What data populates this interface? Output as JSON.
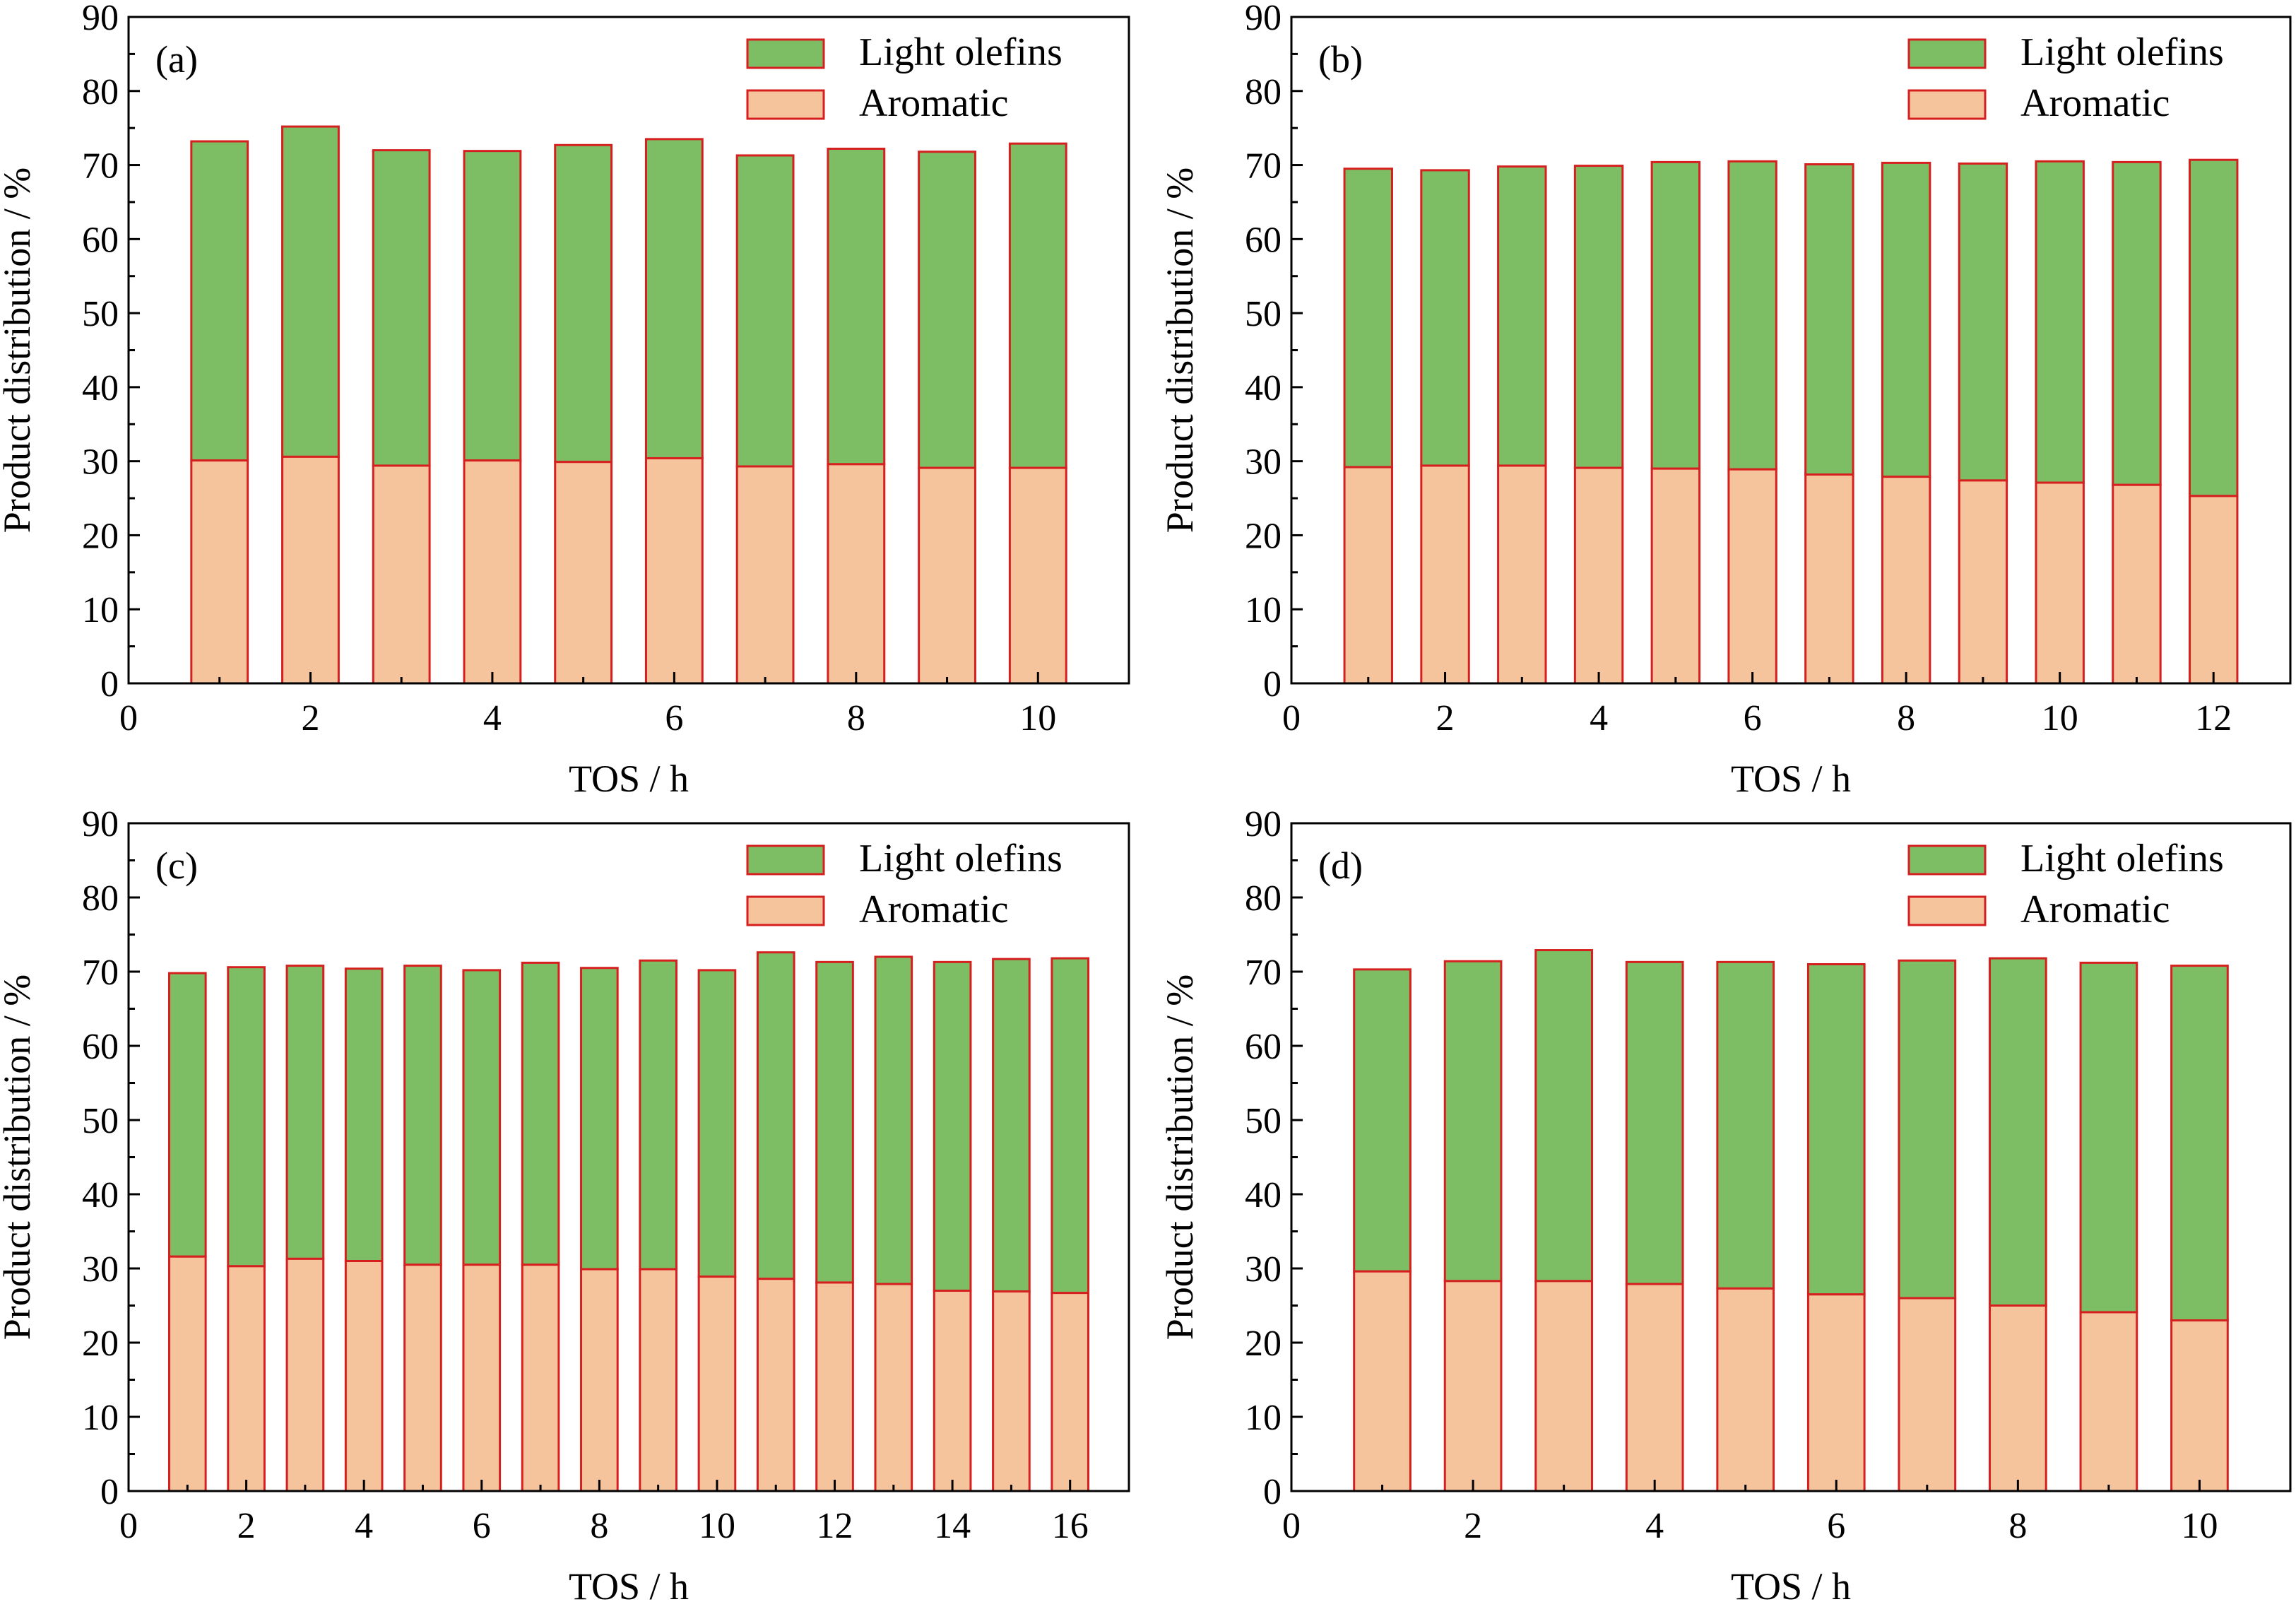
{
  "colors": {
    "light_olefins": "#7dbe64",
    "aromatic": "#f5c49c",
    "bar_edge": "#d62020",
    "axis": "#000000"
  },
  "chart_data": [
    {
      "type": "bar",
      "stacked": true,
      "panel_label": "(a)",
      "xlabel": "TOS / h",
      "ylabel": "Product distribution / %",
      "xlim": [
        0,
        11
      ],
      "ylim": [
        0,
        90
      ],
      "xticks": [
        0,
        2,
        4,
        6,
        8,
        10
      ],
      "yticks": [
        0,
        10,
        20,
        30,
        40,
        50,
        60,
        70,
        80,
        90
      ],
      "legend_position": "top-right",
      "x": [
        1,
        2,
        3,
        4,
        5,
        6,
        7,
        8,
        9,
        10
      ],
      "series": [
        {
          "name": "Aromatic",
          "values": [
            30.1,
            30.6,
            29.4,
            30.1,
            29.9,
            30.4,
            29.3,
            29.6,
            29.1,
            29.1
          ]
        },
        {
          "name": "Light olefins",
          "values": [
            43.1,
            44.6,
            42.6,
            41.8,
            42.8,
            43.1,
            42.0,
            42.6,
            42.7,
            43.8
          ]
        }
      ]
    },
    {
      "type": "bar",
      "stacked": true,
      "panel_label": "(b)",
      "xlabel": "TOS / h",
      "ylabel": "Product distribution / %",
      "xlim": [
        0,
        13
      ],
      "ylim": [
        0,
        90
      ],
      "xticks": [
        0,
        2,
        4,
        6,
        8,
        10,
        12
      ],
      "yticks": [
        0,
        10,
        20,
        30,
        40,
        50,
        60,
        70,
        80,
        90
      ],
      "legend_position": "top-right",
      "x": [
        1,
        2,
        3,
        4,
        5,
        6,
        7,
        8,
        9,
        10,
        11,
        12
      ],
      "series": [
        {
          "name": "Aromatic",
          "values": [
            29.2,
            29.4,
            29.4,
            29.1,
            29.0,
            28.9,
            28.2,
            27.9,
            27.4,
            27.1,
            26.8,
            25.3
          ]
        },
        {
          "name": "Light olefins",
          "values": [
            40.3,
            39.9,
            40.4,
            40.8,
            41.4,
            41.6,
            41.9,
            42.4,
            42.8,
            43.4,
            43.6,
            45.4
          ]
        }
      ]
    },
    {
      "type": "bar",
      "stacked": true,
      "panel_label": "(c)",
      "xlabel": "TOS / h",
      "ylabel": "Product distribution / %",
      "xlim": [
        0,
        17
      ],
      "ylim": [
        0,
        90
      ],
      "xticks": [
        0,
        2,
        4,
        6,
        8,
        10,
        12,
        14,
        16
      ],
      "yticks": [
        0,
        10,
        20,
        30,
        40,
        50,
        60,
        70,
        80,
        90
      ],
      "legend_position": "top-right",
      "x": [
        1,
        2,
        3,
        4,
        5,
        6,
        7,
        8,
        9,
        10,
        11,
        12,
        13,
        14,
        15,
        16
      ],
      "series": [
        {
          "name": "Aromatic",
          "values": [
            31.6,
            30.3,
            31.3,
            31.0,
            30.5,
            30.5,
            30.5,
            29.9,
            29.9,
            28.9,
            28.6,
            28.1,
            27.9,
            27.0,
            26.9,
            26.7
          ]
        },
        {
          "name": "Light olefins",
          "values": [
            38.2,
            40.3,
            39.5,
            39.4,
            40.3,
            39.7,
            40.7,
            40.6,
            41.6,
            41.3,
            44.0,
            43.2,
            44.1,
            44.3,
            44.8,
            45.1
          ]
        }
      ]
    },
    {
      "type": "bar",
      "stacked": true,
      "panel_label": "(d)",
      "xlabel": "TOS / h",
      "ylabel": "Product distribution / %",
      "xlim": [
        0,
        11
      ],
      "ylim": [
        0,
        90
      ],
      "xticks": [
        0,
        2,
        4,
        6,
        8,
        10
      ],
      "yticks": [
        0,
        10,
        20,
        30,
        40,
        50,
        60,
        70,
        80,
        90
      ],
      "legend_position": "top-right",
      "x": [
        1,
        2,
        3,
        4,
        5,
        6,
        7,
        8,
        9,
        10
      ],
      "series": [
        {
          "name": "Aromatic",
          "values": [
            29.6,
            28.3,
            28.3,
            27.9,
            27.3,
            26.5,
            26.0,
            25.0,
            24.1,
            23.0
          ]
        },
        {
          "name": "Light olefins",
          "values": [
            40.7,
            43.1,
            44.6,
            43.4,
            44.0,
            44.5,
            45.5,
            46.8,
            47.1,
            47.8
          ]
        }
      ]
    }
  ]
}
